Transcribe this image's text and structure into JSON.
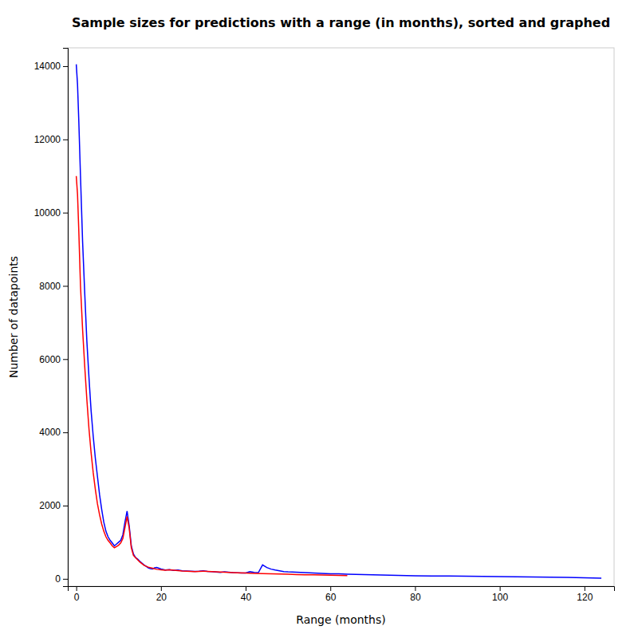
{
  "chart_data": {
    "type": "line",
    "title": "Sample sizes for predictions with a range (in months), sorted and graphed",
    "xlabel": "Range (months)",
    "ylabel": "Number of datapoints",
    "xlim": [
      -2,
      127
    ],
    "ylim": [
      -200,
      14500
    ],
    "xticks": [
      0,
      20,
      40,
      60,
      80,
      100,
      120
    ],
    "yticks": [
      0,
      2000,
      4000,
      6000,
      8000,
      10000,
      12000,
      14000
    ],
    "grid": false,
    "series": [
      {
        "color": "#0000ff",
        "x": [
          0,
          0.3,
          0.6,
          1,
          1.5,
          2,
          2.5,
          3,
          3.5,
          4,
          4.5,
          5,
          5.5,
          6,
          6.5,
          7,
          7.5,
          8,
          8.5,
          9,
          9.5,
          10,
          10.5,
          11,
          11.5,
          12,
          12.5,
          13,
          13.5,
          14,
          14.5,
          15,
          15.5,
          16,
          16.5,
          17,
          17.5,
          18,
          18.5,
          19,
          19.5,
          20,
          21,
          22,
          23,
          24,
          25,
          26,
          27,
          28,
          29,
          30,
          31,
          32,
          33,
          34,
          35,
          36,
          37,
          38,
          39,
          40,
          41,
          42,
          43,
          44,
          45,
          46,
          47,
          48,
          49,
          50,
          52,
          54,
          56,
          58,
          60,
          62,
          64,
          66,
          68,
          70,
          72,
          74,
          76,
          78,
          80,
          84,
          88,
          92,
          96,
          100,
          104,
          108,
          112,
          116,
          120,
          124
        ],
        "values": [
          14050,
          13500,
          12500,
          11000,
          9200,
          7800,
          6500,
          5500,
          4600,
          3900,
          3300,
          2800,
          2300,
          1900,
          1550,
          1300,
          1150,
          1050,
          980,
          900,
          950,
          1000,
          1050,
          1200,
          1550,
          1850,
          1450,
          900,
          680,
          580,
          540,
          480,
          430,
          380,
          340,
          300,
          280,
          270,
          300,
          310,
          290,
          270,
          240,
          250,
          230,
          240,
          220,
          215,
          210,
          205,
          210,
          220,
          205,
          195,
          185,
          175,
          190,
          180,
          170,
          165,
          160,
          160,
          195,
          175,
          170,
          380,
          310,
          265,
          240,
          220,
          200,
          190,
          180,
          170,
          160,
          150,
          140,
          135,
          125,
          120,
          115,
          110,
          105,
          100,
          95,
          90,
          85,
          80,
          75,
          70,
          65,
          60,
          55,
          50,
          45,
          40,
          30,
          20
        ]
      },
      {
        "color": "#ff0000",
        "x": [
          0,
          0.3,
          0.6,
          1,
          1.5,
          2,
          2.5,
          3,
          3.5,
          4,
          4.5,
          5,
          5.5,
          6,
          6.5,
          7,
          7.5,
          8,
          8.5,
          9,
          9.5,
          10,
          10.5,
          11,
          11.5,
          12,
          12.5,
          13,
          13.5,
          14,
          15,
          16,
          17,
          18,
          19,
          20,
          21,
          22,
          23,
          24,
          25,
          26,
          27,
          28,
          29,
          30,
          32,
          34,
          36,
          38,
          40,
          42,
          44,
          46,
          48,
          50,
          52,
          54,
          56,
          58,
          60,
          62,
          64
        ],
        "values": [
          11000,
          10500,
          9500,
          8000,
          6800,
          5800,
          4900,
          4100,
          3450,
          2900,
          2450,
          2050,
          1750,
          1500,
          1300,
          1150,
          1050,
          980,
          900,
          850,
          880,
          920,
          980,
          1100,
          1400,
          1700,
          1380,
          850,
          640,
          580,
          460,
          370,
          320,
          290,
          260,
          245,
          235,
          245,
          235,
          225,
          215,
          210,
          205,
          200,
          205,
          210,
          195,
          185,
          175,
          165,
          160,
          150,
          145,
          135,
          130,
          125,
          118,
          112,
          108,
          103,
          98,
          92,
          88
        ]
      }
    ]
  }
}
